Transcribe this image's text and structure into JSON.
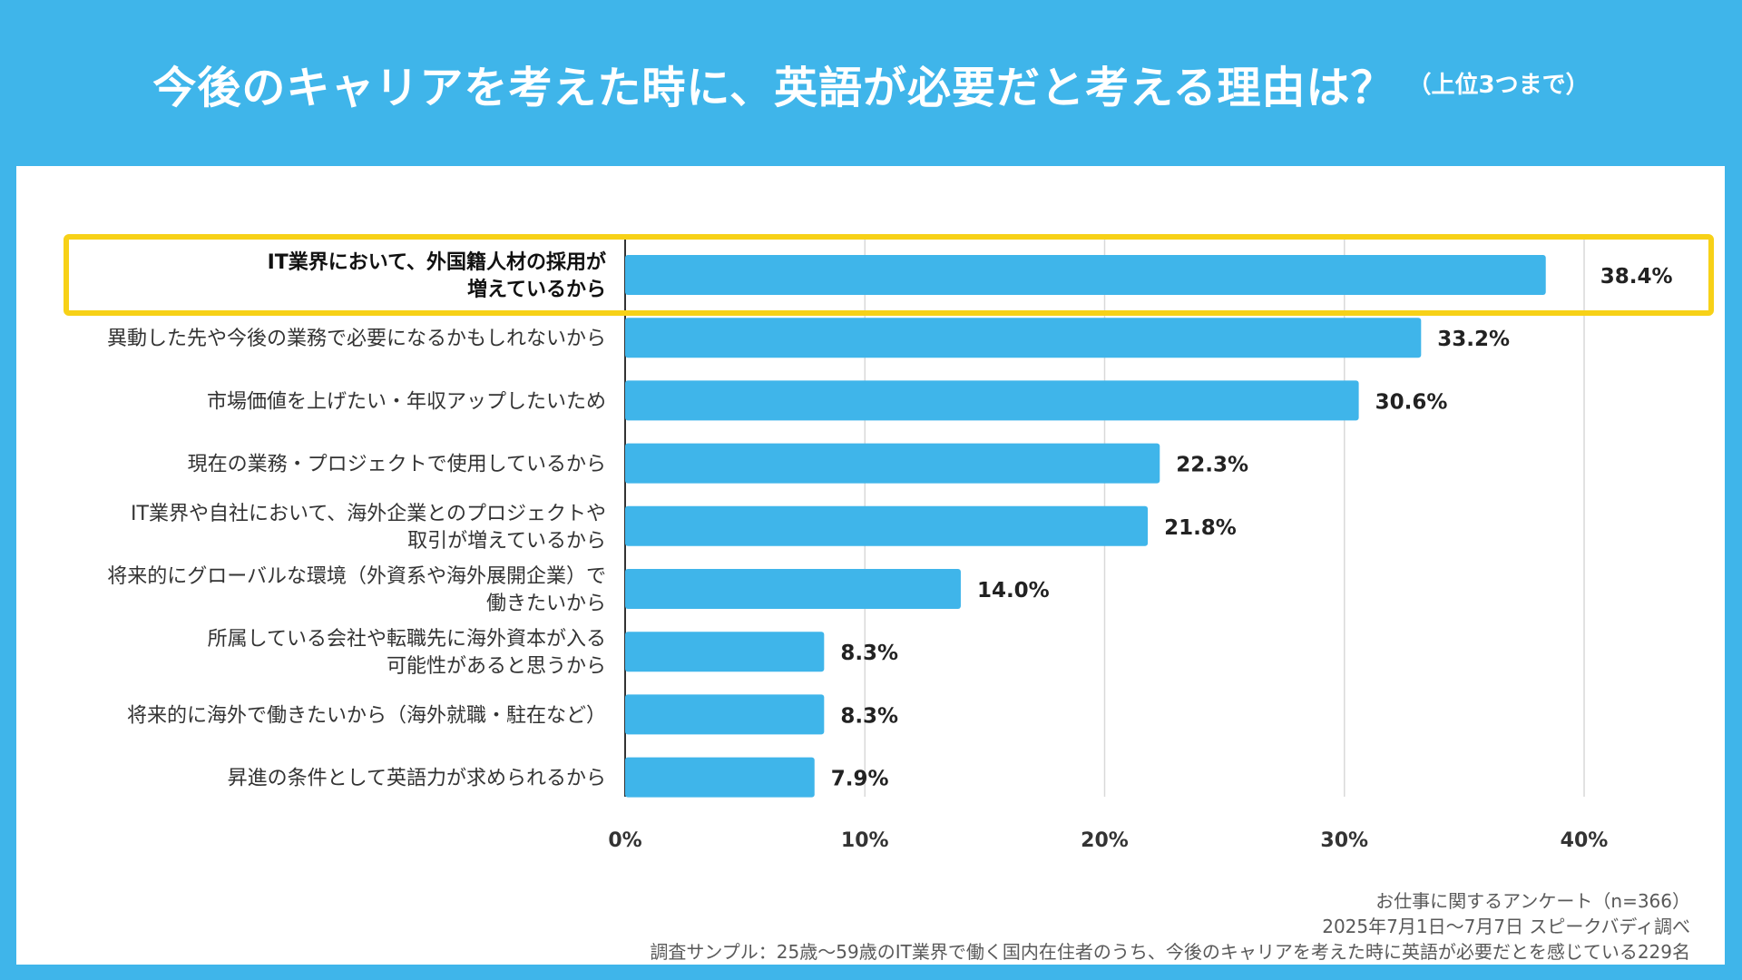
{
  "header": {
    "title": "今後のキャリアを考えた時に、英語が必要だと考える理由は？",
    "subtitle": "（上位3つまで）"
  },
  "chart_data": {
    "type": "bar",
    "orientation": "horizontal",
    "title": "今後のキャリアを考えた時に、英語が必要だと考える理由は？",
    "categories": [
      [
        "IT業界において、外国籍人材の採用が",
        "増えているから"
      ],
      [
        "異動した先や今後の業務で必要になるかもしれないから"
      ],
      [
        "市場価値を上げたい・年収アップしたいため"
      ],
      [
        "現在の業務・プロジェクトで使用しているから"
      ],
      [
        "IT業界や自社において、海外企業とのプロジェクトや",
        "取引が増えているから"
      ],
      [
        "将来的にグローバルな環境（外資系や海外展開企業）で",
        "働きたいから"
      ],
      [
        "所属している会社や転職先に海外資本が入る",
        "可能性があると思うから"
      ],
      [
        "将来的に海外で働きたいから（海外就職・駐在など）"
      ],
      [
        "昇進の条件として英語力が求められるから"
      ]
    ],
    "values": [
      38.4,
      33.2,
      30.6,
      22.3,
      21.8,
      14.0,
      8.3,
      8.3,
      7.9
    ],
    "value_labels": [
      "38.4%",
      "33.2%",
      "30.6%",
      "22.3%",
      "21.8%",
      "14.0%",
      "8.3%",
      "8.3%",
      "7.9%"
    ],
    "xlim": [
      0,
      40
    ],
    "xticks": [
      0,
      10,
      20,
      30,
      40
    ],
    "xtick_labels": [
      "0%",
      "10%",
      "20%",
      "30%",
      "40%"
    ],
    "grid": true,
    "highlighted_index": 0,
    "bar_color": "#3FB5EA",
    "highlight_color": "#F7D117"
  },
  "footer": {
    "line1": "お仕事に関するアンケート（n=366）",
    "line2": "2025年7月1日〜7月7日 スピークバディ調べ",
    "line3": "調査サンプル：25歳〜59歳のIT業界で働く国内在住者のうち、今後のキャリアを考えた時に英語が必要だとを感じている229名"
  }
}
